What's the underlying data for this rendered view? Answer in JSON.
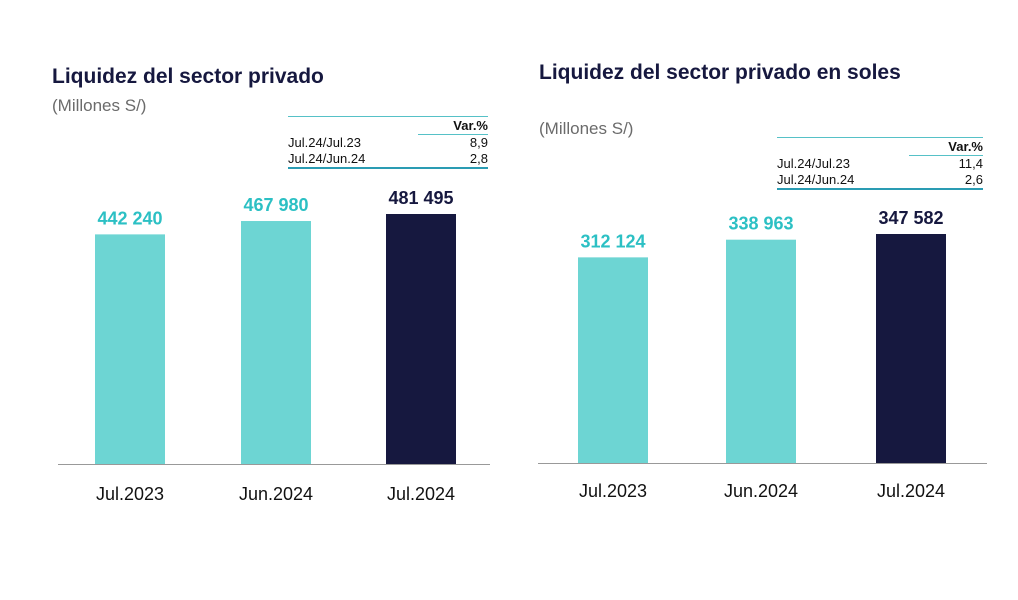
{
  "colors": {
    "light_bar": "#6dd5d3",
    "dark_bar": "#16183f",
    "light_label": "#2cc0c4",
    "dark_label": "#16183f",
    "axis": "#999999"
  },
  "chart_data": [
    {
      "type": "bar",
      "title": "Liquidez del sector privado",
      "subtitle": "(Millones S/)",
      "categories": [
        "Jul.2023",
        "Jun.2024",
        "Jul.2024"
      ],
      "values": [
        442240,
        467980,
        481495
      ],
      "value_labels": [
        "442 240",
        "467 980",
        "481 495"
      ],
      "highlight_index": 2,
      "ylim": [
        0,
        500000
      ],
      "grid": false,
      "var_table": {
        "header": "Var.%",
        "rows": [
          {
            "label": "Jul.24/Jul.23",
            "value": "8,9"
          },
          {
            "label": "Jul.24/Jun.24",
            "value": "2,8"
          }
        ]
      }
    },
    {
      "type": "bar",
      "title": "Liquidez del sector privado en soles",
      "subtitle": "(Millones S/)",
      "categories": [
        "Jul.2023",
        "Jun.2024",
        "Jul.2024"
      ],
      "values": [
        312124,
        338963,
        347582
      ],
      "value_labels": [
        "312 124",
        "338 963",
        "347 582"
      ],
      "highlight_index": 2,
      "ylim": [
        0,
        400000
      ],
      "grid": false,
      "var_table": {
        "header": "Var.%",
        "rows": [
          {
            "label": "Jul.24/Jul.23",
            "value": "11,4"
          },
          {
            "label": "Jul.24/Jun.24",
            "value": "2,6"
          }
        ]
      }
    }
  ]
}
